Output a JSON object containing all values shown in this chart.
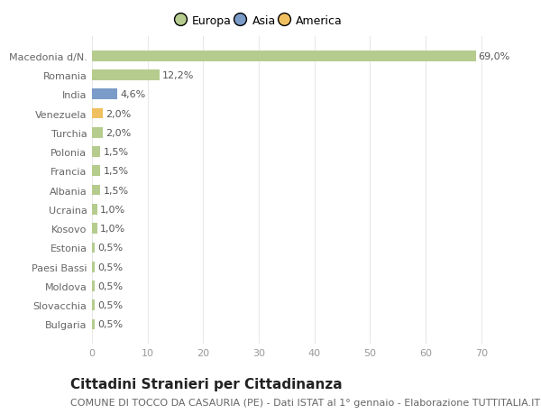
{
  "categories": [
    "Bulgaria",
    "Slovacchia",
    "Moldova",
    "Paesi Bassi",
    "Estonia",
    "Kosovo",
    "Ucraina",
    "Albania",
    "Francia",
    "Polonia",
    "Turchia",
    "Venezuela",
    "India",
    "Romania",
    "Macedonia d/N."
  ],
  "values": [
    0.5,
    0.5,
    0.5,
    0.5,
    0.5,
    1.0,
    1.0,
    1.5,
    1.5,
    1.5,
    2.0,
    2.0,
    4.6,
    12.2,
    69.0
  ],
  "labels": [
    "0,5%",
    "0,5%",
    "0,5%",
    "0,5%",
    "0,5%",
    "1,0%",
    "1,0%",
    "1,5%",
    "1,5%",
    "1,5%",
    "2,0%",
    "2,0%",
    "4,6%",
    "12,2%",
    "69,0%"
  ],
  "colors": [
    "#b5cc8e",
    "#b5cc8e",
    "#b5cc8e",
    "#b5cc8e",
    "#b5cc8e",
    "#b5cc8e",
    "#b5cc8e",
    "#b5cc8e",
    "#b5cc8e",
    "#b5cc8e",
    "#b5cc8e",
    "#f0c060",
    "#7b9bc8",
    "#b5cc8e",
    "#b5cc8e"
  ],
  "legend_labels": [
    "Europa",
    "Asia",
    "America"
  ],
  "legend_colors": [
    "#b5cc8e",
    "#7b9bc8",
    "#f0c060"
  ],
  "title": "Cittadini Stranieri per Cittadinanza",
  "subtitle": "COMUNE DI TOCCO DA CASAURIA (PE) - Dati ISTAT al 1° gennaio - Elaborazione TUTTITALIA.IT",
  "xlim": [
    0,
    72
  ],
  "xticks": [
    0,
    10,
    20,
    30,
    40,
    50,
    60,
    70
  ],
  "background_color": "#ffffff",
  "grid_color": "#e8e8e8",
  "bar_height": 0.55,
  "title_fontsize": 11,
  "subtitle_fontsize": 8,
  "label_fontsize": 8,
  "tick_fontsize": 8,
  "legend_fontsize": 9,
  "ytick_color": "#666666",
  "xtick_color": "#999999",
  "label_color": "#555555"
}
